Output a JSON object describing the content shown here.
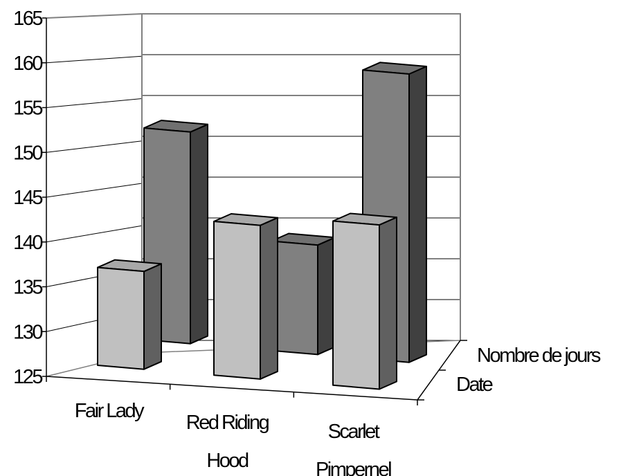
{
  "chart_data": {
    "type": "bar",
    "variant": "3d-clustered-depth",
    "categories": [
      "Fair Lady",
      "Red Riding Hood",
      "Scarlet Pimpernel"
    ],
    "category_label_lines": [
      [
        "Fair Lady"
      ],
      [
        "Red Riding",
        "Hood"
      ],
      [
        "Scarlet",
        "Pimpernel"
      ]
    ],
    "series": [
      {
        "name": "Date",
        "values": [
          139,
          147,
          148.5
        ],
        "color": "#c0c0c0"
      },
      {
        "name": "Nombre de jours",
        "values": [
          154,
          140,
          164.5
        ],
        "color": "#808080"
      }
    ],
    "y_ticks": [
      125,
      130,
      135,
      140,
      145,
      150,
      155,
      160,
      165
    ],
    "ylim": [
      125,
      165
    ],
    "grid": true,
    "title": "",
    "xlabel": "",
    "ylabel": ""
  }
}
